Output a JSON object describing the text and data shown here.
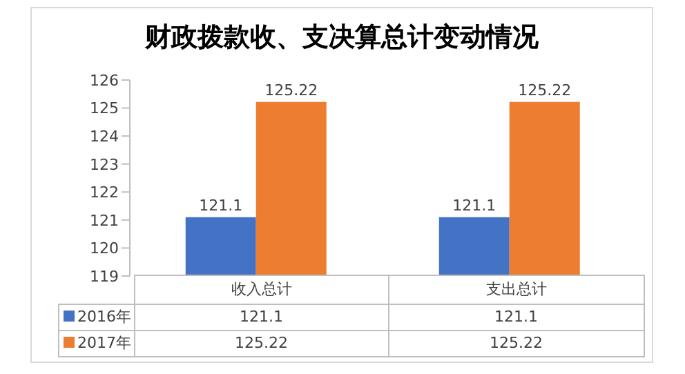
{
  "chart_data": {
    "type": "bar",
    "title": "财政拨款收、支决算总计变动情况",
    "categories": [
      "收入总计",
      "支出总计"
    ],
    "series": [
      {
        "name": "2016年",
        "color": "#4472c4",
        "values": [
          121.1,
          121.1
        ]
      },
      {
        "name": "2017年",
        "color": "#ed7d31",
        "values": [
          125.22,
          125.22
        ]
      }
    ],
    "annotations": [
      "121.1",
      "121.1",
      "125.22",
      "125.22"
    ],
    "ylim": [
      119,
      126
    ],
    "yticks": [
      119,
      120,
      121,
      122,
      123,
      124,
      125,
      126
    ],
    "grid": false,
    "legend": "bottom",
    "data_labels": true
  }
}
